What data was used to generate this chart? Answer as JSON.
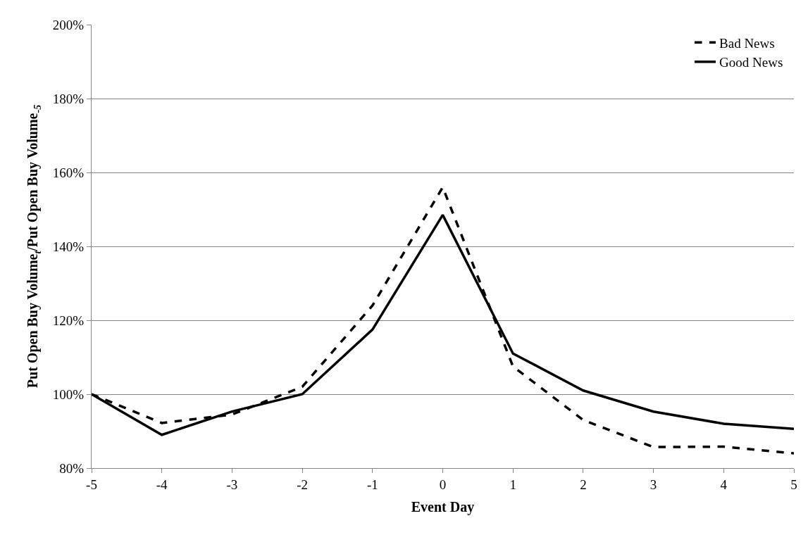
{
  "chart_data": {
    "type": "line",
    "xlabel": "Event Day",
    "ylabel": "Put Open Buy Volume$_{t}$/Put Open Buy Volume$_{-5}$",
    "x": [
      -5,
      -4,
      -3,
      -2,
      -1,
      0,
      1,
      2,
      3,
      4,
      5
    ],
    "series": [
      {
        "name": "Bad News",
        "color": "#000000",
        "line_style": "dashed",
        "values": [
          100,
          92.2,
          94.5,
          102,
          124,
          156,
          107.5,
          93,
          85.7,
          85.8,
          84
        ]
      },
      {
        "name": "Good News",
        "color": "#000000",
        "line_style": "solid",
        "values": [
          100,
          89,
          95.3,
          100,
          117.5,
          148.5,
          111,
          101,
          95.3,
          92,
          90.6
        ]
      }
    ],
    "xlim": [
      -5,
      5
    ],
    "xticks": [
      -5,
      -4,
      -3,
      -2,
      -1,
      0,
      1,
      2,
      3,
      4,
      5
    ],
    "ylim": [
      80,
      200
    ],
    "yticks": [
      {
        "value": 80,
        "label": "80%"
      },
      {
        "value": 100,
        "label": "100%"
      },
      {
        "value": 120,
        "label": "120%"
      },
      {
        "value": 140,
        "label": "140%"
      },
      {
        "value": 160,
        "label": "160%"
      },
      {
        "value": 180,
        "label": "180%"
      },
      {
        "value": 200,
        "label": "200%"
      }
    ],
    "grid": "y",
    "legend": "top right",
    "marker": "none"
  }
}
